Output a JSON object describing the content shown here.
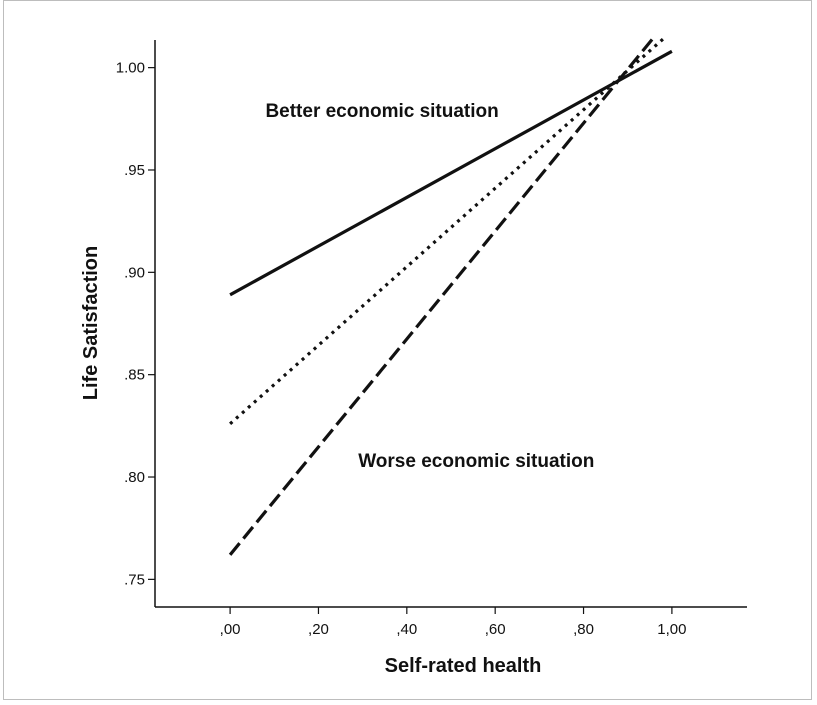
{
  "chart_data": {
    "type": "line",
    "xlabel": "Self-rated health",
    "ylabel": "Life Satisfaction",
    "xlim": [
      -0.17,
      1.17
    ],
    "ylim": [
      0.7365,
      1.0135
    ],
    "x_ticks": [
      0.0,
      0.2,
      0.4,
      0.6,
      0.8,
      1.0
    ],
    "x_tick_labels": [
      ",00",
      ",20",
      ",40",
      ",60",
      ",80",
      "1,00"
    ],
    "y_ticks": [
      0.75,
      0.8,
      0.85,
      0.9,
      0.95,
      1.0
    ],
    "y_tick_labels": [
      ".75",
      ".80",
      ".85",
      ".90",
      ".95",
      "1.00"
    ],
    "grid": false,
    "series": [
      {
        "style": "solid",
        "x": [
          0.0,
          1.0
        ],
        "y": [
          0.889,
          1.008
        ]
      },
      {
        "style": "dotted",
        "x": [
          0.0,
          0.98
        ],
        "y": [
          0.826,
          1.014
        ]
      },
      {
        "style": "dashed",
        "x": [
          0.0,
          0.96
        ],
        "y": [
          0.762,
          1.015
        ]
      }
    ],
    "annotations": [
      {
        "text": "Better economic situation",
        "x": 0.08,
        "y": 0.976
      },
      {
        "text": "Worse economic situation",
        "x": 0.29,
        "y": 0.805
      }
    ]
  }
}
